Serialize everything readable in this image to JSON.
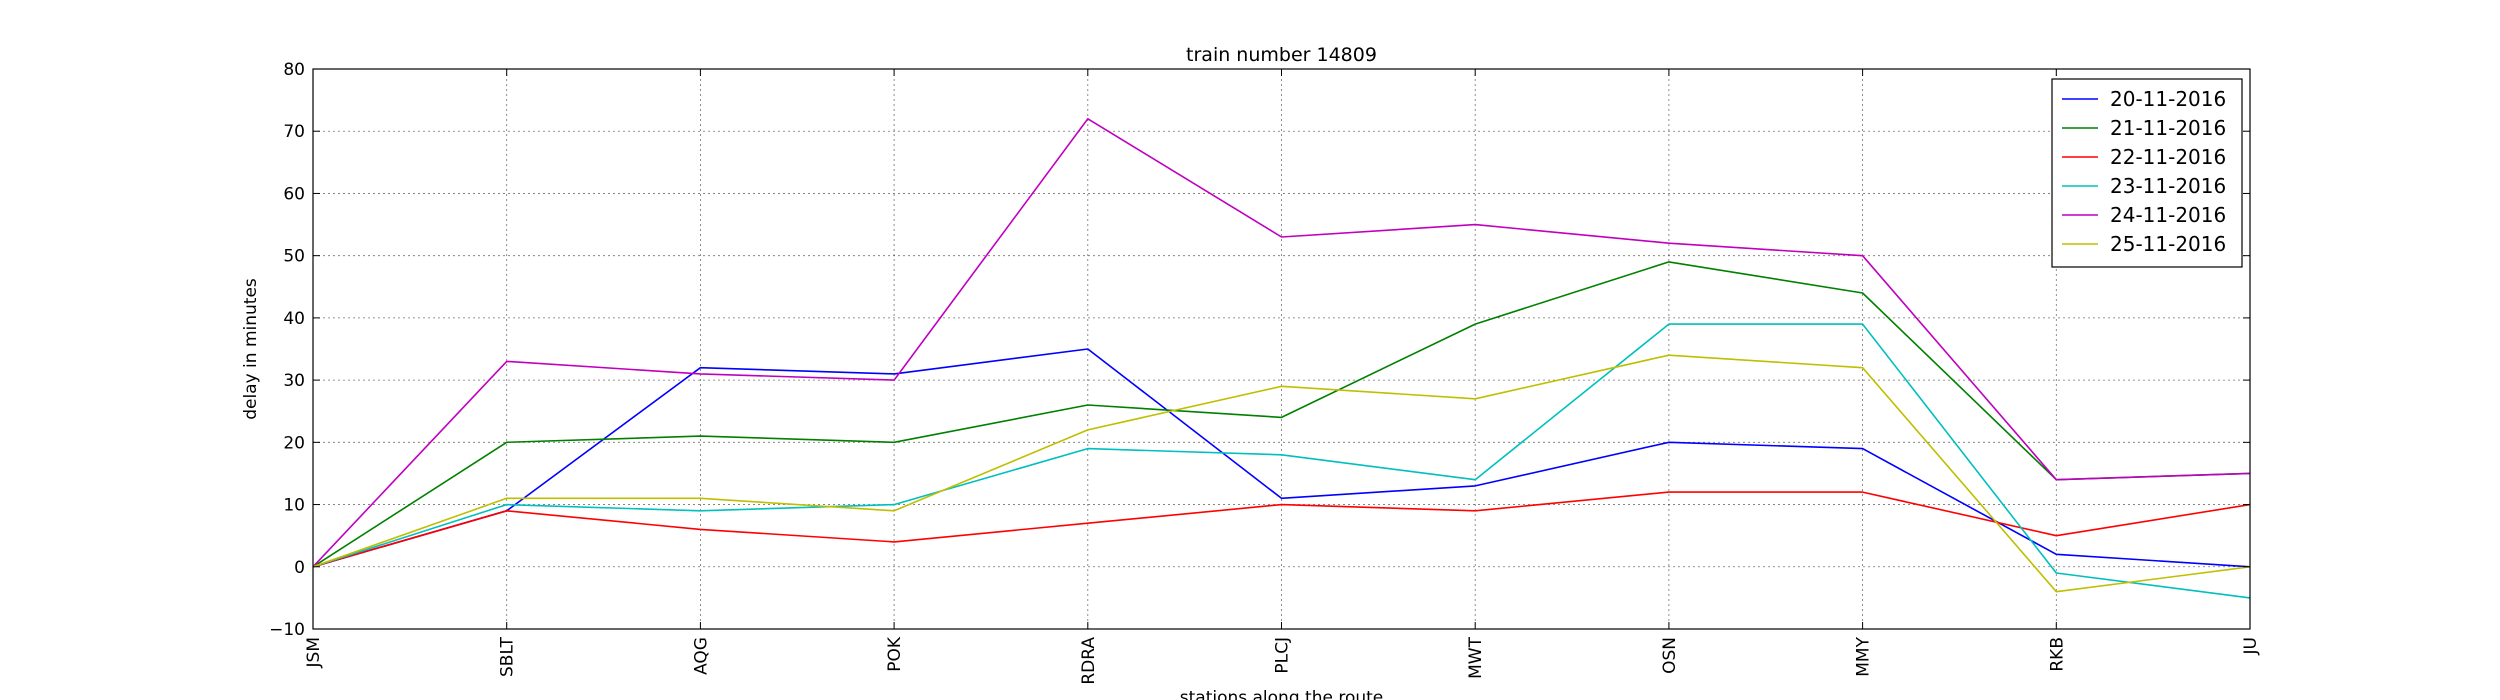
{
  "chart_data": {
    "type": "line",
    "title": "train number 14809",
    "xlabel": "stations along the route",
    "ylabel": "delay in minutes",
    "categories": [
      "JSM",
      "SBLT",
      "AQG",
      "POK",
      "RDRA",
      "PLCJ",
      "MWT",
      "OSN",
      "MMY",
      "RKB",
      "JU"
    ],
    "ylim": [
      -10,
      80
    ],
    "yticks": [
      -10,
      0,
      10,
      20,
      30,
      40,
      50,
      60,
      70,
      80
    ],
    "grid": true,
    "legend_position": "top-right",
    "series": [
      {
        "name": "20-11-2016",
        "color": "#0000ff",
        "values": [
          0,
          9,
          32,
          31,
          35,
          11,
          13,
          20,
          19,
          2,
          0
        ]
      },
      {
        "name": "21-11-2016",
        "color": "#008000",
        "values": [
          0,
          20,
          21,
          20,
          26,
          24,
          39,
          49,
          44,
          14,
          15
        ]
      },
      {
        "name": "22-11-2016",
        "color": "#ff0000",
        "values": [
          0,
          9,
          6,
          4,
          7,
          10,
          9,
          12,
          12,
          5,
          10
        ]
      },
      {
        "name": "23-11-2016",
        "color": "#00bfbf",
        "values": [
          0,
          10,
          9,
          10,
          19,
          18,
          14,
          39,
          39,
          -1,
          -5
        ]
      },
      {
        "name": "24-11-2016",
        "color": "#bf00bf",
        "values": [
          0,
          33,
          31,
          30,
          72,
          53,
          55,
          52,
          50,
          14,
          15
        ]
      },
      {
        "name": "25-11-2016",
        "color": "#bfbf00",
        "values": [
          0,
          11,
          11,
          9,
          22,
          29,
          27,
          34,
          32,
          -4,
          0
        ]
      }
    ]
  }
}
